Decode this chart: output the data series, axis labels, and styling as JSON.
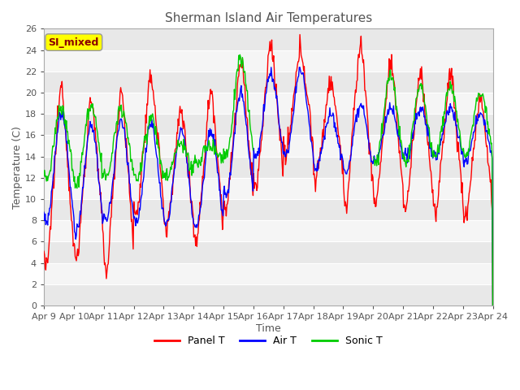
{
  "title": "Sherman Island Air Temperatures",
  "xlabel": "Time",
  "ylabel": "Temperature (C)",
  "ylim": [
    0,
    26
  ],
  "yticks": [
    0,
    2,
    4,
    6,
    8,
    10,
    12,
    14,
    16,
    18,
    20,
    22,
    24,
    26
  ],
  "xtick_labels": [
    "Apr 9",
    "Apr 10",
    "Apr 11",
    "Apr 12",
    "Apr 13",
    "Apr 14",
    "Apr 15",
    "Apr 16",
    "Apr 17",
    "Apr 18",
    "Apr 19",
    "Apr 20",
    "Apr 21",
    "Apr 22",
    "Apr 23",
    "Apr 24"
  ],
  "panel_color": "red",
  "air_color": "blue",
  "sonic_color": "#00cc00",
  "line_width": 1.0,
  "annotation_text": "SI_mixed",
  "annotation_bg": "yellow",
  "annotation_fg": "#8b0000",
  "title_fontsize": 11,
  "label_fontsize": 9,
  "tick_fontsize": 8,
  "n_days": 15,
  "pts_per_day": 48,
  "panel_day_peaks": [
    20.5,
    19.4,
    20.2,
    21.3,
    18.3,
    20.1,
    22.7,
    24.5,
    24.0,
    21.2,
    24.5,
    22.7,
    21.8,
    21.9,
    19.5
  ],
  "panel_day_troughs": [
    3.5,
    4.2,
    3.3,
    8.5,
    7.0,
    5.9,
    9.0,
    11.0,
    14.0,
    11.8,
    9.3,
    9.6,
    9.1,
    8.5,
    8.2
  ],
  "air_day_peaks": [
    18.0,
    17.0,
    17.2,
    17.0,
    16.5,
    16.3,
    20.0,
    21.8,
    22.0,
    18.0,
    19.0,
    18.5,
    18.5,
    18.5,
    18.0
  ],
  "air_day_troughs": [
    7.8,
    6.8,
    8.0,
    7.8,
    7.5,
    7.5,
    10.3,
    14.0,
    14.0,
    13.0,
    12.5,
    13.5,
    13.8,
    14.0,
    13.5
  ],
  "sonic_day_peaks": [
    18.5,
    18.8,
    18.5,
    17.5,
    15.3,
    15.0,
    23.2,
    -1,
    -1,
    -1,
    -1,
    21.5,
    20.5,
    20.5,
    20.0
  ],
  "sonic_day_troughs": [
    12.0,
    11.5,
    12.0,
    11.8,
    12.0,
    13.5,
    14.0,
    -1,
    -1,
    -1,
    -1,
    13.5,
    13.5,
    14.0,
    14.0
  ]
}
